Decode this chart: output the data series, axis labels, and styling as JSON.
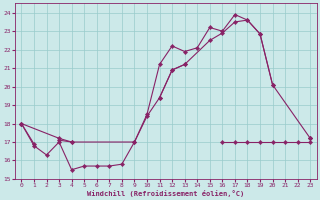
{
  "xlabel": "Windchill (Refroidissement éolien,°C)",
  "xlim": [
    -0.5,
    23.5
  ],
  "ylim": [
    15,
    24.5
  ],
  "yticks": [
    15,
    16,
    17,
    18,
    19,
    20,
    21,
    22,
    23,
    24
  ],
  "xticks": [
    0,
    1,
    2,
    3,
    4,
    5,
    6,
    7,
    8,
    9,
    10,
    11,
    12,
    13,
    14,
    15,
    16,
    17,
    18,
    19,
    20,
    21,
    22,
    23
  ],
  "bg_color": "#cce9e9",
  "line_color": "#882266",
  "grid_color": "#99cccc",
  "line1_y": [
    18.0,
    16.8,
    16.3,
    17.0,
    15.5,
    15.7,
    15.7,
    15.7,
    15.8,
    17.0,
    18.5,
    21.2,
    22.2,
    21.9,
    22.1,
    23.2,
    23.0,
    23.9,
    23.6,
    22.85,
    20.1,
    null,
    null,
    17.2
  ],
  "line2_y": [
    18.0,
    16.9,
    null,
    17.1,
    17.0,
    null,
    null,
    null,
    null,
    null,
    null,
    19.4,
    20.9,
    21.2,
    null,
    null,
    null,
    null,
    null,
    null,
    null,
    null,
    null,
    17.2
  ],
  "line3_y": [
    null,
    null,
    null,
    null,
    null,
    null,
    null,
    null,
    null,
    null,
    null,
    null,
    null,
    null,
    null,
    null,
    17.0,
    17.0,
    17.0,
    17.0,
    17.0,
    17.0,
    17.0,
    17.0
  ],
  "smooth_line_x": [
    0,
    3,
    4,
    9,
    10,
    11,
    12,
    13,
    15,
    16,
    17,
    18,
    19,
    20,
    23
  ],
  "smooth_line_y": [
    18.0,
    17.2,
    17.0,
    17.0,
    18.4,
    19.4,
    20.9,
    21.2,
    22.5,
    22.9,
    23.5,
    23.6,
    22.85,
    20.1,
    17.2
  ]
}
